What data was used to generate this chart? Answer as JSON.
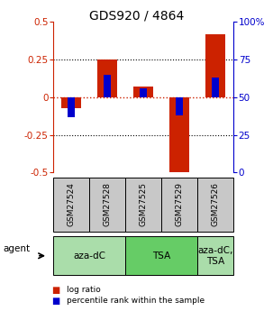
{
  "title": "GDS920 / 4864",
  "samples": [
    "GSM27524",
    "GSM27528",
    "GSM27525",
    "GSM27529",
    "GSM27526"
  ],
  "log_ratio": [
    -0.07,
    0.25,
    0.07,
    -0.5,
    0.42
  ],
  "percentile_rank": [
    37,
    65,
    56,
    38,
    63
  ],
  "agent_groups": [
    {
      "label": "aza-dC",
      "start": 0,
      "end": 2,
      "color": "#aaddaa"
    },
    {
      "label": "TSA",
      "start": 2,
      "end": 4,
      "color": "#66cc66"
    },
    {
      "label": "aza-dC,\nTSA",
      "start": 4,
      "end": 5,
      "color": "#aaddaa"
    }
  ],
  "ylim": [
    -0.5,
    0.5
  ],
  "yticks_left": [
    -0.5,
    -0.25,
    0,
    0.25,
    0.5
  ],
  "yticks_right": [
    0,
    25,
    50,
    75,
    100
  ],
  "red_color": "#cc2200",
  "blue_color": "#0000cc",
  "sample_box_color": "#c8c8c8",
  "title_fontsize": 10,
  "tick_fontsize": 7.5,
  "legend_fontsize": 6.5,
  "agent_fontsize": 7.5,
  "sample_fontsize": 6.5
}
